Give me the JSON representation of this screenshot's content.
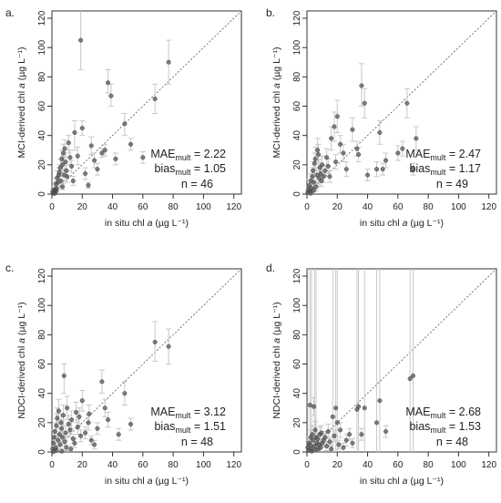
{
  "chart_data": [
    {
      "type": "scatter",
      "panel_label": "a.",
      "ylabel_main": "MCI-derived chl ",
      "xlabel_main": "in situ chl ",
      "label_italic": "a",
      "label_units": " (µg L⁻¹)",
      "xlim": [
        0,
        125
      ],
      "ylim": [
        0,
        125
      ],
      "xticks": [
        0,
        20,
        40,
        60,
        80,
        100,
        120
      ],
      "yticks": [
        0,
        20,
        40,
        60,
        80,
        100,
        120
      ],
      "one_to_one_line": true,
      "stats": {
        "mae_prefix": "MAE",
        "mae_sub": "mult",
        "mae_value": " = 2.22",
        "bias_prefix": "bias",
        "bias_sub": "mult",
        "bias_value": " = 1.05",
        "n": "n = 46"
      },
      "points": [
        [
          0.5,
          1.5,
          0,
          3
        ],
        [
          1,
          0.5,
          0,
          2
        ],
        [
          1.5,
          3,
          1,
          5
        ],
        [
          2,
          2,
          0,
          4
        ],
        [
          2.5,
          7,
          3,
          11
        ],
        [
          3,
          4,
          1,
          7
        ],
        [
          3.5,
          11,
          6,
          16
        ],
        [
          4,
          8,
          4,
          12
        ],
        [
          4.5,
          13,
          8,
          18
        ],
        [
          5,
          15,
          10,
          20
        ],
        [
          5.5,
          18,
          12,
          24
        ],
        [
          6,
          9,
          5,
          13
        ],
        [
          6.5,
          24,
          18,
          30
        ],
        [
          7,
          20,
          14,
          26
        ],
        [
          7.5,
          28,
          22,
          34
        ],
        [
          8,
          13,
          9,
          17
        ],
        [
          8.5,
          31,
          25,
          37
        ],
        [
          9,
          22,
          16,
          28
        ],
        [
          9.5,
          16,
          12,
          20
        ],
        [
          10,
          12,
          8,
          16
        ],
        [
          11,
          35,
          28,
          40
        ],
        [
          12,
          25,
          20,
          30
        ],
        [
          13,
          19,
          15,
          23
        ],
        [
          14,
          9,
          6,
          12
        ],
        [
          15,
          42,
          30,
          50
        ],
        [
          17,
          26,
          20,
          32
        ],
        [
          19,
          105,
          85,
          125
        ],
        [
          20,
          45,
          40,
          50
        ],
        [
          22,
          14,
          10,
          18
        ],
        [
          24,
          6,
          4,
          8
        ],
        [
          26,
          33,
          27,
          39
        ],
        [
          28,
          23,
          18,
          28
        ],
        [
          30,
          17,
          13,
          21
        ],
        [
          33,
          28,
          25,
          31
        ],
        [
          35,
          30,
          26,
          34
        ],
        [
          37,
          76,
          69,
          85
        ],
        [
          39,
          67,
          60,
          75
        ],
        [
          42,
          24,
          20,
          28
        ],
        [
          48,
          48,
          40,
          55
        ],
        [
          52,
          34,
          30,
          38
        ],
        [
          60,
          25,
          21,
          29
        ],
        [
          68,
          65,
          55,
          75
        ],
        [
          77,
          90,
          75,
          105
        ],
        [
          2,
          0.5,
          0,
          2
        ],
        [
          3,
          2.5,
          1,
          4
        ],
        [
          7,
          5,
          3,
          7
        ]
      ]
    },
    {
      "type": "scatter",
      "panel_label": "b.",
      "ylabel_main": "MCI-derived chl ",
      "xlabel_main": "in situ chl ",
      "label_italic": "a",
      "label_units": " (µg L⁻¹)",
      "xlim": [
        0,
        125
      ],
      "ylim": [
        0,
        125
      ],
      "xticks": [
        0,
        20,
        40,
        60,
        80,
        100,
        120
      ],
      "yticks": [
        0,
        20,
        40,
        60,
        80,
        100,
        120
      ],
      "one_to_one_line": true,
      "stats": {
        "mae_prefix": "MAE",
        "mae_sub": "mult",
        "mae_value": " = 2.47",
        "bias_prefix": "bias",
        "bias_sub": "mult",
        "bias_value": " = 1.17",
        "n": "n = 49"
      },
      "points": [
        [
          0.5,
          1,
          0,
          3
        ],
        [
          1,
          3,
          0,
          6
        ],
        [
          1.5,
          6,
          2,
          10
        ],
        [
          2,
          2,
          0,
          5
        ],
        [
          2.5,
          9,
          4,
          14
        ],
        [
          3,
          4,
          1,
          8
        ],
        [
          3.5,
          12,
          6,
          18
        ],
        [
          4,
          16,
          10,
          22
        ],
        [
          4.5,
          8,
          4,
          12
        ],
        [
          5,
          21,
          14,
          28
        ],
        [
          5.5,
          24,
          16,
          32
        ],
        [
          6,
          5,
          2,
          8
        ],
        [
          6.5,
          13,
          8,
          18
        ],
        [
          7,
          30,
          22,
          38
        ],
        [
          7.5,
          27,
          20,
          34
        ],
        [
          8,
          11,
          6,
          16
        ],
        [
          8.5,
          18,
          12,
          24
        ],
        [
          9,
          14,
          9,
          19
        ],
        [
          9.5,
          9,
          5,
          13
        ],
        [
          10,
          20,
          14,
          26
        ],
        [
          11,
          12,
          8,
          16
        ],
        [
          12,
          16,
          12,
          20
        ],
        [
          13,
          25,
          19,
          31
        ],
        [
          14,
          19,
          14,
          24
        ],
        [
          15,
          12,
          8,
          16
        ],
        [
          16,
          38,
          30,
          46
        ],
        [
          18,
          46,
          36,
          56
        ],
        [
          19,
          22,
          17,
          27
        ],
        [
          20,
          53,
          42,
          64
        ],
        [
          22,
          34,
          28,
          40
        ],
        [
          24,
          28,
          22,
          34
        ],
        [
          26,
          17,
          12,
          22
        ],
        [
          30,
          44,
          36,
          52
        ],
        [
          33,
          31,
          26,
          36
        ],
        [
          34,
          27,
          22,
          32
        ],
        [
          36,
          74,
          60,
          89
        ],
        [
          38,
          62,
          52,
          72
        ],
        [
          40,
          13,
          9,
          17
        ],
        [
          46,
          17,
          12,
          22
        ],
        [
          48,
          42,
          34,
          50
        ],
        [
          50,
          17,
          13,
          21
        ],
        [
          52,
          23,
          18,
          28
        ],
        [
          60,
          28,
          23,
          33
        ],
        [
          63,
          31,
          26,
          36
        ],
        [
          66,
          62,
          52,
          72
        ],
        [
          70,
          17,
          13,
          21
        ],
        [
          72,
          38,
          30,
          46
        ],
        [
          2.5,
          0.5,
          0,
          2
        ],
        [
          4.5,
          2.5,
          0,
          5
        ]
      ]
    },
    {
      "type": "scatter",
      "panel_label": "c.",
      "ylabel_main": "NDCI-derived chl ",
      "xlabel_main": "in situ chl ",
      "label_italic": "a",
      "label_units": " (µg L⁻¹)",
      "xlim": [
        0,
        125
      ],
      "ylim": [
        0,
        125
      ],
      "xticks": [
        0,
        20,
        40,
        60,
        80,
        100,
        120
      ],
      "yticks": [
        0,
        20,
        40,
        60,
        80,
        100,
        120
      ],
      "one_to_one_line": true,
      "stats": {
        "mae_prefix": "MAE",
        "mae_sub": "mult",
        "mae_value": " = 3.12",
        "bias_prefix": "bias",
        "bias_sub": "mult",
        "bias_value": " = 1.51",
        "n": "n = 48"
      },
      "points": [
        [
          0.5,
          2,
          0,
          5
        ],
        [
          1,
          6,
          2,
          10
        ],
        [
          1.5,
          10,
          5,
          15
        ],
        [
          2,
          14,
          8,
          20
        ],
        [
          2.5,
          3,
          0,
          6
        ],
        [
          3,
          18,
          10,
          26
        ],
        [
          3.5,
          23,
          16,
          30
        ],
        [
          4,
          8,
          4,
          12
        ],
        [
          4.5,
          28,
          20,
          36
        ],
        [
          5,
          12,
          7,
          17
        ],
        [
          5.5,
          5,
          2,
          8
        ],
        [
          6,
          20,
          14,
          26
        ],
        [
          6.5,
          16,
          10,
          22
        ],
        [
          7,
          10,
          6,
          14
        ],
        [
          7.5,
          25,
          18,
          32
        ],
        [
          8,
          52,
          40,
          60
        ],
        [
          8.5,
          7,
          4,
          10
        ],
        [
          9,
          13,
          8,
          18
        ],
        [
          9.5,
          3,
          1,
          5
        ],
        [
          10,
          30,
          22,
          38
        ],
        [
          11,
          19,
          13,
          25
        ],
        [
          12,
          15,
          10,
          20
        ],
        [
          13,
          22,
          16,
          28
        ],
        [
          14,
          9,
          6,
          12
        ],
        [
          15,
          6,
          3,
          9
        ],
        [
          16,
          27,
          20,
          34
        ],
        [
          17,
          17,
          12,
          22
        ],
        [
          18,
          24,
          18,
          30
        ],
        [
          19,
          11,
          7,
          15
        ],
        [
          20,
          35,
          28,
          42
        ],
        [
          22,
          13,
          9,
          17
        ],
        [
          24,
          20,
          15,
          25
        ],
        [
          26,
          8,
          5,
          11
        ],
        [
          28,
          5,
          2,
          8
        ],
        [
          30,
          16,
          12,
          20
        ],
        [
          33,
          48,
          40,
          56
        ],
        [
          35,
          30,
          24,
          36
        ],
        [
          37,
          22,
          17,
          27
        ],
        [
          48,
          40,
          32,
          48
        ],
        [
          52,
          19,
          15,
          23
        ],
        [
          68,
          75,
          62,
          89
        ],
        [
          77,
          72,
          60,
          84
        ],
        [
          3,
          1,
          0,
          3
        ],
        [
          6.5,
          0.5,
          0,
          2
        ],
        [
          12.5,
          2,
          0,
          4
        ],
        [
          1,
          0.2,
          0,
          1.5
        ],
        [
          24.5,
          26,
          20,
          32
        ],
        [
          44,
          12,
          8,
          16
        ]
      ]
    },
    {
      "type": "scatter",
      "panel_label": "d.",
      "ylabel_main": "NDCI-derived chl ",
      "xlabel_main": "in situ chl ",
      "label_italic": "a",
      "label_units": " (µg L⁻¹)",
      "xlim": [
        0,
        125
      ],
      "ylim": [
        0,
        125
      ],
      "xticks": [
        0,
        20,
        40,
        60,
        80,
        100,
        120
      ],
      "yticks": [
        0,
        20,
        40,
        60,
        80,
        100,
        120
      ],
      "one_to_one_line": true,
      "stats": {
        "mae_prefix": "MAE",
        "mae_sub": "mult",
        "mae_value": " = 2.68",
        "bias_prefix": "bias",
        "bias_sub": "mult",
        "bias_value": " = 1.53",
        "n": "n = 48"
      },
      "points": [
        [
          0.5,
          3,
          0,
          125
        ],
        [
          1,
          1,
          0,
          8
        ],
        [
          1.5,
          6,
          2,
          10
        ],
        [
          2,
          32,
          0,
          125
        ],
        [
          2.5,
          10,
          5,
          15
        ],
        [
          3,
          2,
          0,
          125
        ],
        [
          3.5,
          12,
          6,
          18
        ],
        [
          4,
          8,
          4,
          12
        ],
        [
          4.5,
          31,
          25,
          37
        ],
        [
          5,
          4,
          0,
          125
        ],
        [
          5.5,
          15,
          9,
          21
        ],
        [
          6,
          10,
          0,
          125
        ],
        [
          6.5,
          6,
          2,
          10
        ],
        [
          7,
          9,
          5,
          13
        ],
        [
          7.5,
          2,
          0,
          5
        ],
        [
          8,
          5,
          2,
          8
        ],
        [
          8.5,
          12,
          7,
          17
        ],
        [
          9,
          3,
          0,
          6
        ],
        [
          9.5,
          13,
          8,
          18
        ],
        [
          10,
          6,
          3,
          9
        ],
        [
          11,
          8,
          4,
          12
        ],
        [
          12,
          10,
          6,
          14
        ],
        [
          13,
          4,
          1,
          7
        ],
        [
          14,
          14,
          9,
          19
        ],
        [
          15,
          7,
          4,
          10
        ],
        [
          17,
          24,
          0,
          125
        ],
        [
          18,
          11,
          7,
          15
        ],
        [
          19,
          30,
          0,
          125
        ],
        [
          20,
          20,
          0,
          125
        ],
        [
          21,
          5,
          2,
          8
        ],
        [
          22,
          15,
          10,
          20
        ],
        [
          24,
          3,
          0,
          6
        ],
        [
          26,
          8,
          4,
          12
        ],
        [
          28,
          12,
          8,
          16
        ],
        [
          30,
          6,
          3,
          9
        ],
        [
          33,
          29,
          0,
          125
        ],
        [
          34,
          31,
          0,
          125
        ],
        [
          36,
          12,
          8,
          16
        ],
        [
          38,
          30,
          0,
          125
        ],
        [
          46,
          20,
          0,
          125
        ],
        [
          48,
          35,
          0,
          125
        ],
        [
          52,
          14,
          10,
          18
        ],
        [
          68,
          50,
          0,
          125
        ],
        [
          70,
          52,
          0,
          125
        ],
        [
          3.2,
          0.5,
          0,
          3
        ],
        [
          5.5,
          1.5,
          0,
          4
        ],
        [
          16,
          2,
          0,
          5
        ],
        [
          2.2,
          4.5,
          1,
          8
        ]
      ]
    }
  ]
}
